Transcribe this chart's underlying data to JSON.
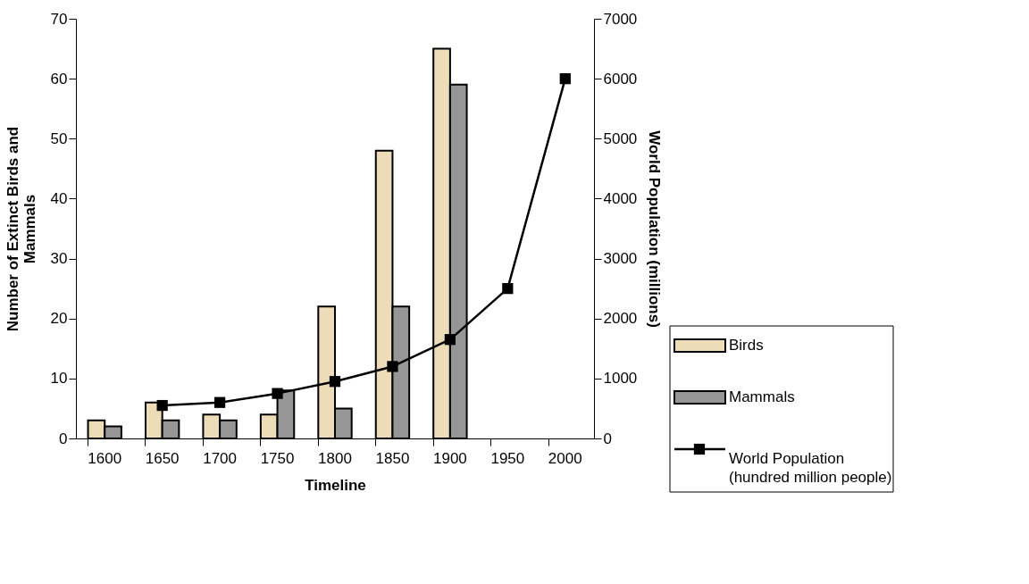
{
  "chart_data": {
    "type": "bar",
    "xlabel": "Timeline",
    "ylabel": "Number of Extinct Birds and Mammals",
    "y2label": "World Population (millions)",
    "categories": [
      "1600",
      "1650",
      "1700",
      "1750",
      "1800",
      "1850",
      "1900",
      "1950",
      "2000"
    ],
    "series": [
      {
        "name": "Birds",
        "color": "#ecdcb8",
        "values": [
          3,
          6,
          4,
          4,
          22,
          48,
          65,
          null,
          null
        ]
      },
      {
        "name": "Mammals",
        "color": "#969696",
        "values": [
          2,
          3,
          3,
          8,
          5,
          22,
          59,
          null,
          null
        ]
      },
      {
        "name": "World Population\n(hundred million people)",
        "type": "line",
        "axis": "y2",
        "color": "#000000",
        "marker": "square",
        "values": [
          null,
          550,
          600,
          750,
          950,
          1200,
          1650,
          2500,
          6000
        ]
      }
    ],
    "ylim": [
      0,
      70
    ],
    "yticks": [
      0,
      10,
      20,
      30,
      40,
      50,
      60,
      70
    ],
    "y2lim": [
      0,
      7000
    ],
    "y2ticks": [
      0,
      1000,
      2000,
      3000,
      4000,
      5000,
      6000,
      7000
    ],
    "grid": false,
    "legend": "bottom right"
  }
}
